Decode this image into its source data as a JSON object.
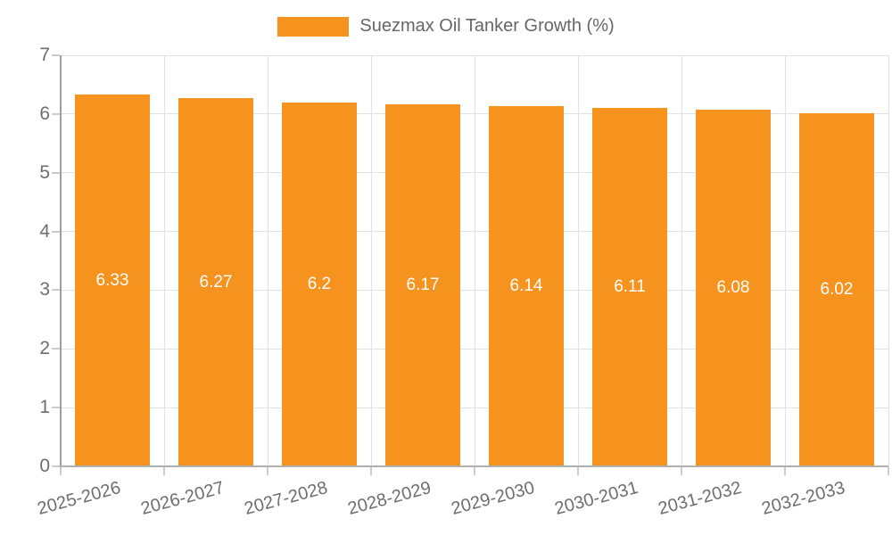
{
  "chart_data": {
    "type": "bar",
    "title": "",
    "legend": "Suezmax Oil Tanker Growth (%)",
    "legend_position": "top",
    "categories": [
      "2025-2026",
      "2026-2027",
      "2027-2028",
      "2028-2029",
      "2029-2030",
      "2030-2031",
      "2031-2032",
      "2032-2033"
    ],
    "values": [
      6.33,
      6.27,
      6.2,
      6.17,
      6.14,
      6.11,
      6.08,
      6.02
    ],
    "value_labels": [
      "6.33",
      "6.27",
      "6.2",
      "6.17",
      "6.14",
      "6.11",
      "6.08",
      "6.02"
    ],
    "xlabel": "",
    "ylabel": "",
    "ylim": [
      0,
      7
    ],
    "yticks": [
      0,
      1,
      2,
      3,
      4,
      5,
      6,
      7
    ],
    "grid": true,
    "colors": {
      "bar": "#F6921E",
      "bar_label_text": "#FFFFFF",
      "tick_text": "#6E6E6E",
      "legend_text": "#666666",
      "gridline": "#E2E2E2",
      "axis_line": "#9E9E9E"
    }
  }
}
